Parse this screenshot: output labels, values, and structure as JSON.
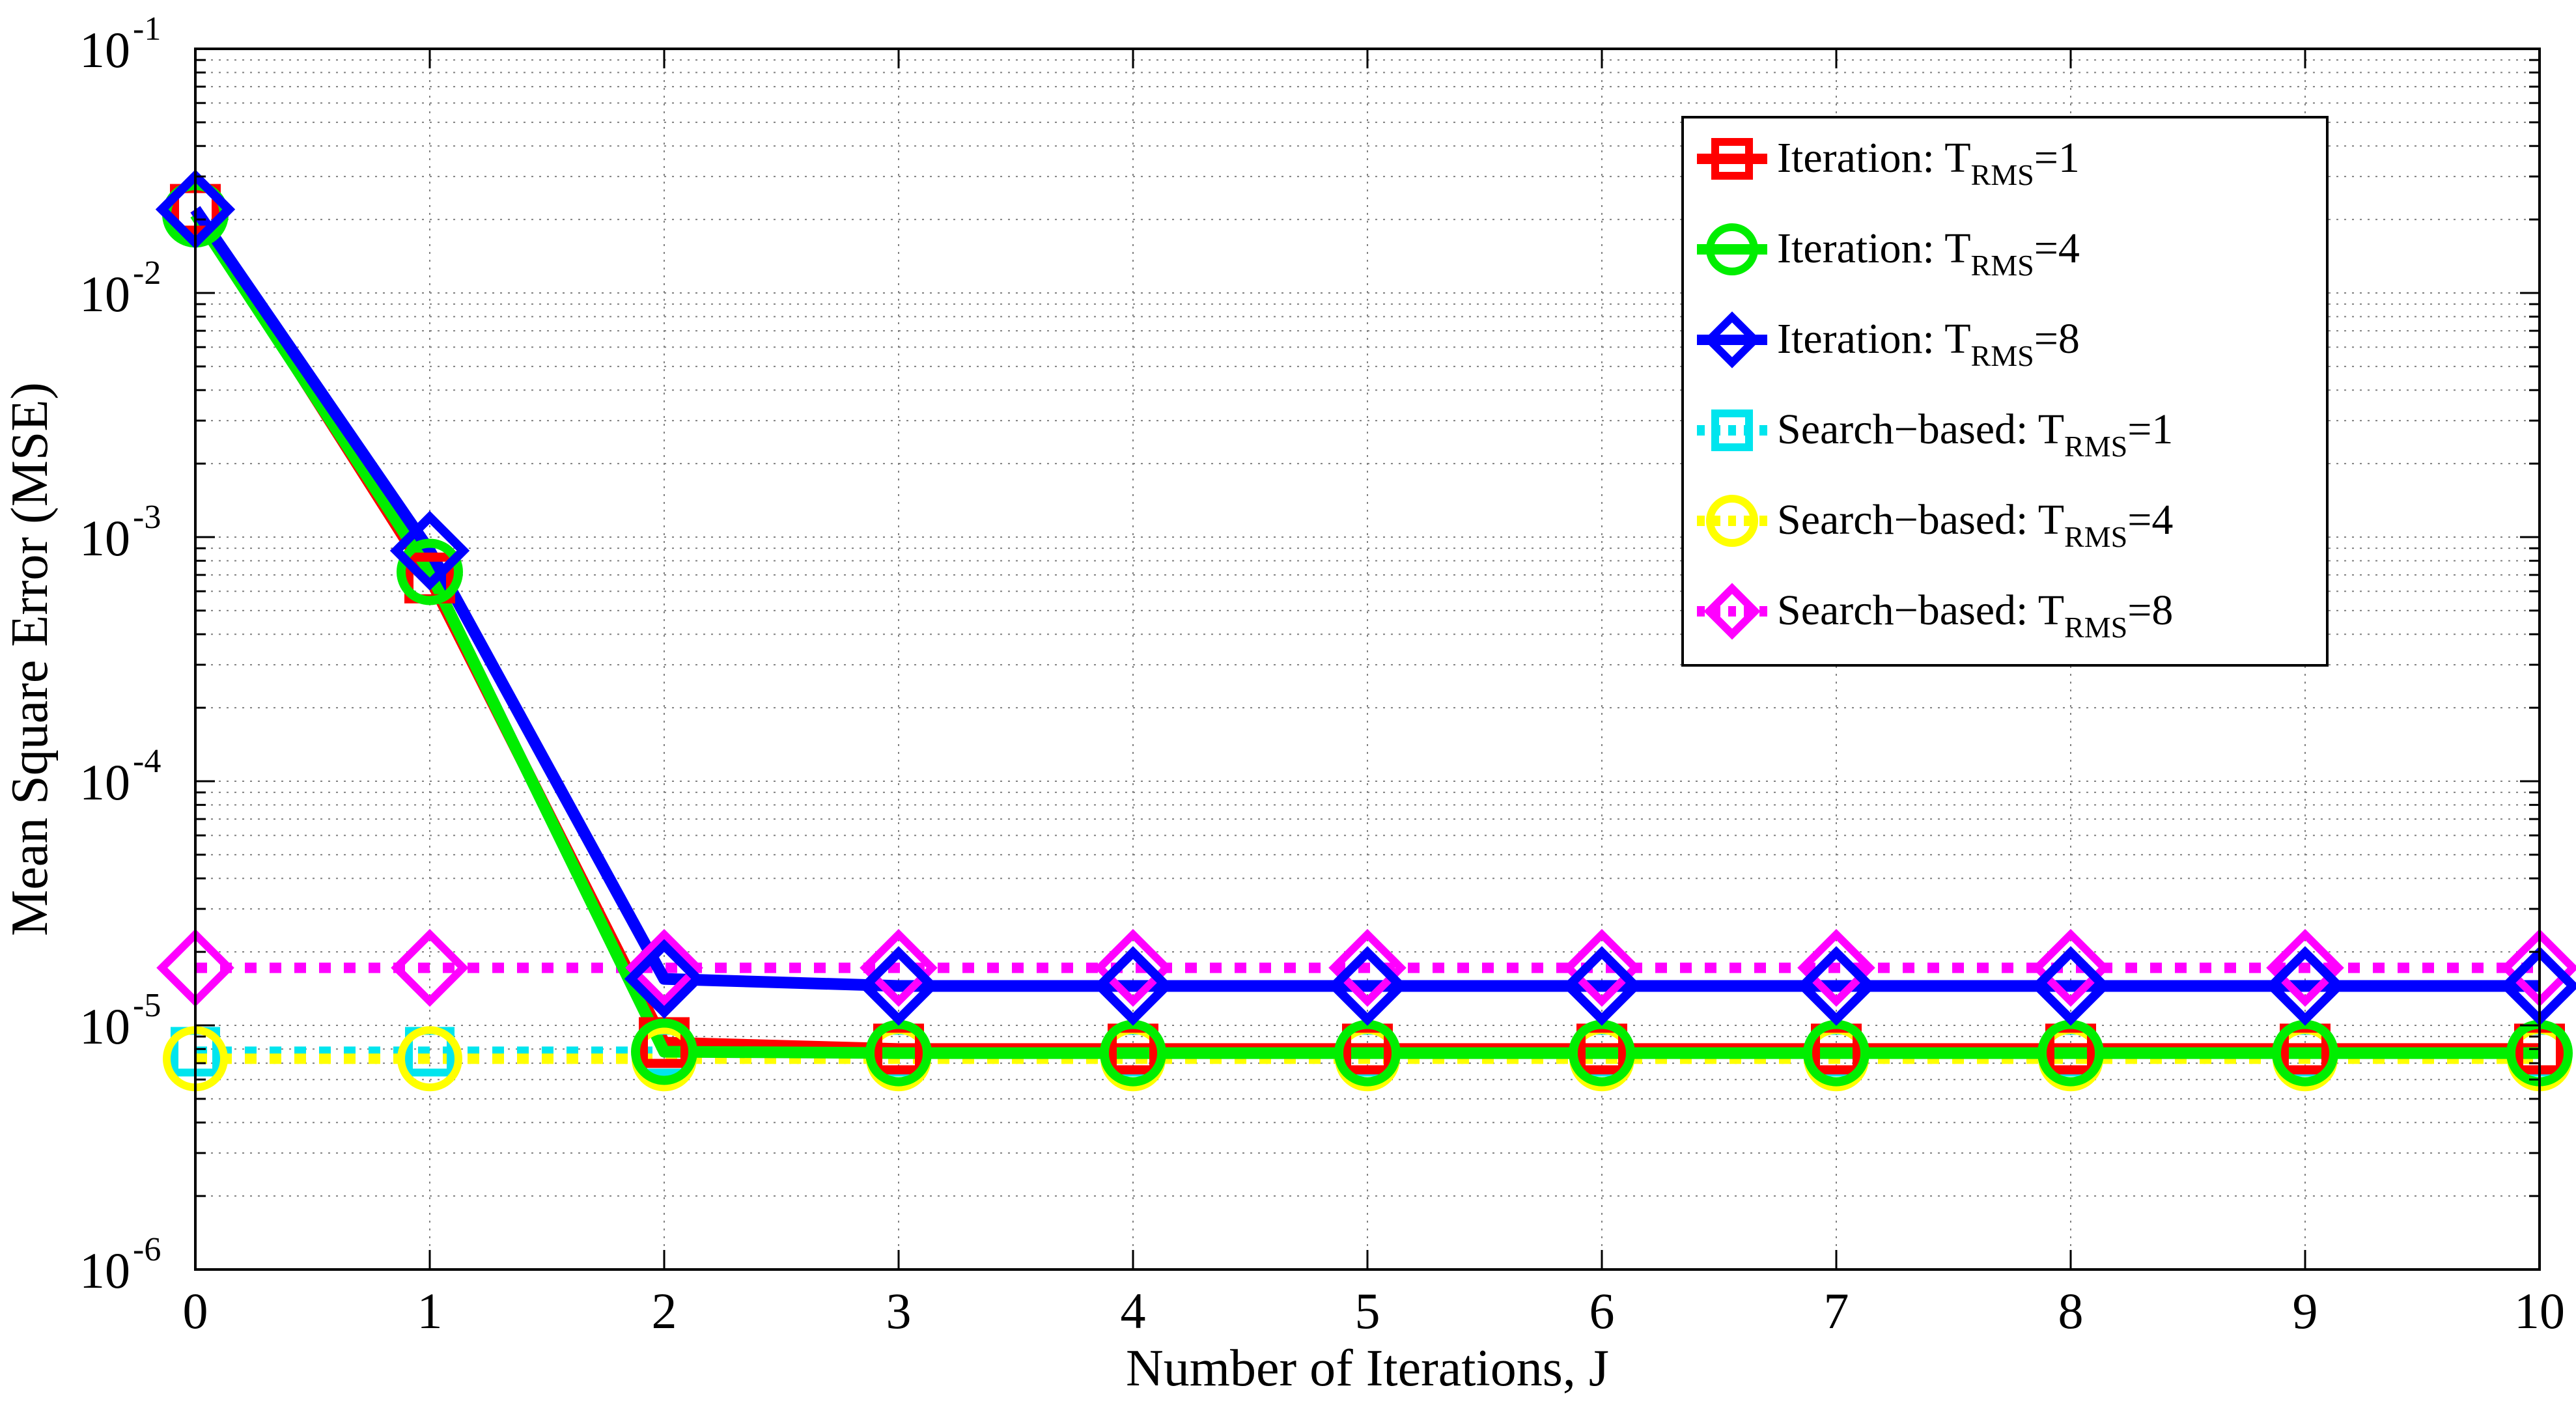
{
  "chart_data": {
    "type": "line",
    "title": "",
    "xlabel": "Number of Iterations, J",
    "ylabel": "Mean Square Error (MSE)",
    "xlim": [
      0,
      10
    ],
    "ylim": [
      1e-06,
      0.1
    ],
    "y_scale": "log",
    "grid": true,
    "legend_position": "top-right",
    "x": [
      0,
      1,
      2,
      3,
      4,
      5,
      6,
      7,
      8,
      9,
      10
    ],
    "x_tick_labels": [
      "0",
      "1",
      "2",
      "3",
      "4",
      "5",
      "6",
      "7",
      "8",
      "9",
      "10"
    ],
    "y_ticks": [
      {
        "base": "10",
        "exp": "-6",
        "value": 1e-06
      },
      {
        "base": "10",
        "exp": "-5",
        "value": 1e-05
      },
      {
        "base": "10",
        "exp": "-4",
        "value": 0.0001
      },
      {
        "base": "10",
        "exp": "-3",
        "value": 0.001
      },
      {
        "base": "10",
        "exp": "-2",
        "value": 0.01
      },
      {
        "base": "10",
        "exp": "-1",
        "value": 0.1
      }
    ],
    "series": [
      {
        "label_main": "Iteration: T",
        "label_sub": "RMS",
        "label_tail": "=1",
        "color": "#ff0000",
        "marker": "square",
        "line": "solid",
        "values": [
          0.022,
          0.00068,
          8.5e-06,
          8e-06,
          8e-06,
          8e-06,
          8e-06,
          8e-06,
          8e-06,
          8e-06,
          8e-06
        ]
      },
      {
        "label_main": "Iteration: T",
        "label_sub": "RMS",
        "label_tail": "=4",
        "color": "#00ee00",
        "marker": "circle",
        "line": "solid",
        "values": [
          0.021,
          0.00072,
          7.8e-06,
          7.7e-06,
          7.7e-06,
          7.7e-06,
          7.7e-06,
          7.7e-06,
          7.7e-06,
          7.7e-06,
          7.7e-06
        ]
      },
      {
        "label_main": "Iteration: T",
        "label_sub": "RMS",
        "label_tail": "=8",
        "color": "#0000ff",
        "marker": "diamond",
        "line": "solid",
        "values": [
          0.022,
          0.00088,
          1.55e-05,
          1.45e-05,
          1.45e-05,
          1.45e-05,
          1.45e-05,
          1.45e-05,
          1.45e-05,
          1.45e-05,
          1.45e-05
        ]
      },
      {
        "label_main": "Search−based: T",
        "label_sub": "RMS",
        "label_tail": "=1",
        "color": "#00e5ee",
        "marker": "square",
        "line": "dotted",
        "values": [
          7.8e-06,
          7.8e-06,
          7.8e-06,
          7.8e-06,
          7.8e-06,
          7.8e-06,
          7.8e-06,
          7.8e-06,
          7.8e-06,
          7.8e-06,
          7.8e-06
        ]
      },
      {
        "label_main": "Search−based: T",
        "label_sub": "RMS",
        "label_tail": "=4",
        "color": "#ffff00",
        "marker": "circle",
        "line": "dotted",
        "values": [
          7.3e-06,
          7.3e-06,
          7.3e-06,
          7.3e-06,
          7.3e-06,
          7.3e-06,
          7.3e-06,
          7.3e-06,
          7.3e-06,
          7.3e-06,
          7.3e-06
        ]
      },
      {
        "label_main": "Search−based: T",
        "label_sub": "RMS",
        "label_tail": "=8",
        "color": "#ff00ff",
        "marker": "diamond",
        "line": "dotted",
        "values": [
          1.72e-05,
          1.72e-05,
          1.72e-05,
          1.72e-05,
          1.72e-05,
          1.72e-05,
          1.72e-05,
          1.72e-05,
          1.72e-05,
          1.72e-05,
          1.72e-05
        ]
      }
    ]
  }
}
